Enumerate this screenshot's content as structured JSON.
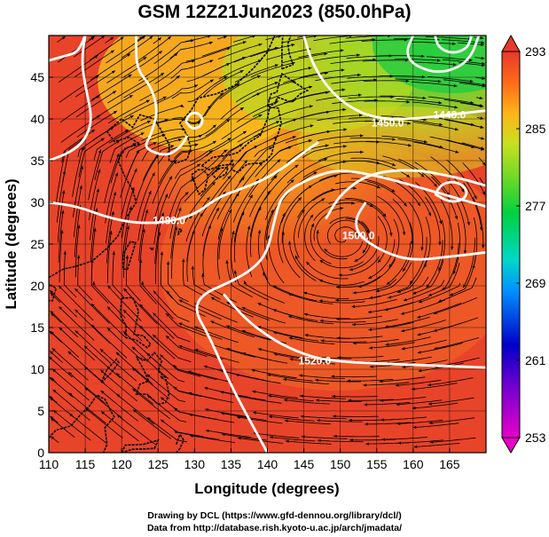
{
  "title": "GSM 12Z21Jun2023 (850.0hPa)",
  "xlabel": "Longitude (degrees)",
  "ylabel": "Latitude  (degrees)",
  "x_ticks": [
    110,
    115,
    120,
    125,
    130,
    135,
    140,
    145,
    150,
    155,
    160,
    165
  ],
  "y_ticks": [
    0,
    5,
    10,
    15,
    20,
    25,
    30,
    35,
    40,
    45
  ],
  "xlim": [
    110,
    170
  ],
  "ylim": [
    0,
    50
  ],
  "colorbar": {
    "ticks": [
      293,
      285,
      277,
      269,
      261,
      253
    ],
    "range": [
      253,
      293
    ]
  },
  "contour_labels": [
    {
      "text": "1480.0",
      "lon": 126.5,
      "lat": 27.8
    },
    {
      "text": "1520.0",
      "lon": 146.5,
      "lat": 11.0
    },
    {
      "text": "1500.0",
      "lon": 152.5,
      "lat": 26.0
    },
    {
      "text": "1450.0",
      "lon": 156.5,
      "lat": 39.5
    },
    {
      "text": "1440.0",
      "lon": 165.0,
      "lat": 40.5
    }
  ],
  "footer": {
    "line1": "Drawing by DCL (https://www.gfd-dennou.org/library/dcl/)",
    "line2": "Data from http://database.rish.kyoto-u.ac.jp/arch/jmadata/"
  },
  "colors": {
    "warm": "#e8442a",
    "mid": "#f5a21e",
    "cool": "#3cd23c",
    "contour": "#ffffff"
  }
}
